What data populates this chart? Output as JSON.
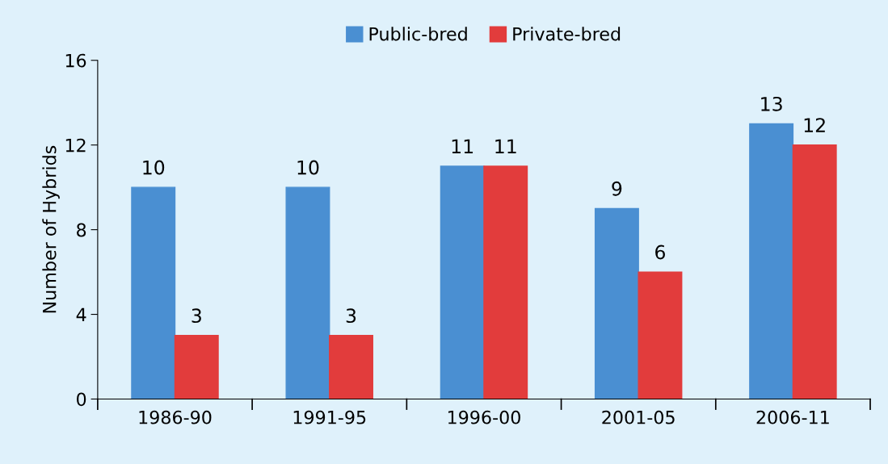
{
  "chart_data": {
    "type": "bar",
    "ylabel": "Number of Hybrids",
    "categories": [
      "1986-90",
      "1991-95",
      "1996-00",
      "2001-05",
      "2006-11"
    ],
    "series": [
      {
        "name": "Public-bred",
        "color": "#4a8fd2",
        "values": [
          10,
          10,
          11,
          9,
          13
        ]
      },
      {
        "name": "Private-bred",
        "color": "#e23c3c",
        "values": [
          3,
          3,
          11,
          6,
          12
        ]
      }
    ],
    "ylim": [
      0,
      16
    ],
    "yticks": [
      0,
      4,
      8,
      12,
      16
    ],
    "data_labels": true,
    "legend": "top",
    "grid": false
  }
}
